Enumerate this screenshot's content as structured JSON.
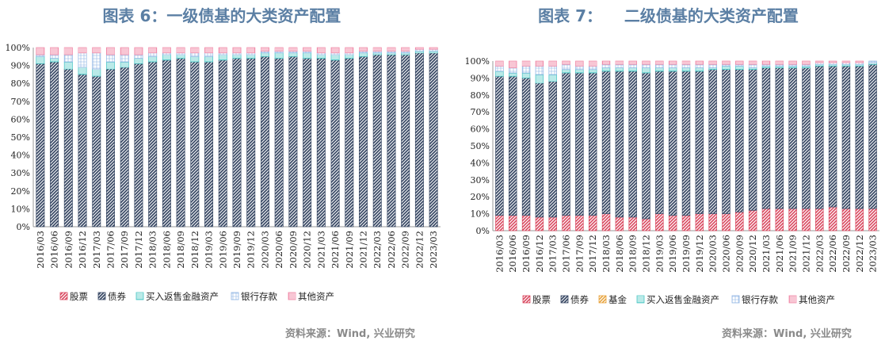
{
  "source_text": "资料来源：Wind, 兴业研究",
  "legend_labels": {
    "stock": "股票",
    "bond": "债券",
    "fund": "基金",
    "repo": "买入返售金融资产",
    "deposit": "银行存款",
    "other": "其他资产"
  },
  "colors": {
    "stock": "#d9485f",
    "bond": "#3a4a66",
    "fund": "#e8a33d",
    "repo": "#47c6c4",
    "deposit": "#8eb4e3",
    "other": "#f08aa8"
  },
  "chart_data": [
    {
      "type": "bar",
      "stacked": true,
      "title": "图表 6：一级债基的大类资产配置",
      "categories": [
        "2016/03",
        "2016/06",
        "2016/09",
        "2016/12",
        "2017/03",
        "2017/06",
        "2017/09",
        "2017/12",
        "2018/03",
        "2018/06",
        "2018/09",
        "2018/12",
        "2019/03",
        "2019/06",
        "2019/09",
        "2019/12",
        "2020/03",
        "2020/06",
        "2020/09",
        "2020/12",
        "2021/03",
        "2021/06",
        "2021/09",
        "2021/12",
        "2022/03",
        "2022/06",
        "2022/09",
        "2022/12",
        "2023/03"
      ],
      "ylim": [
        0,
        100
      ],
      "yticks": [
        "0%",
        "10%",
        "20%",
        "30%",
        "40%",
        "50%",
        "60%",
        "70%",
        "80%",
        "90%",
        "100%"
      ],
      "grid": false,
      "legend_position": "bottom",
      "series": [
        {
          "key": "stock",
          "name": "股票",
          "values": [
            0,
            0,
            0,
            0,
            0,
            0,
            0,
            0,
            0,
            0,
            0,
            0,
            0,
            0,
            0,
            0,
            0,
            0,
            0,
            0,
            0,
            0,
            0,
            0,
            0,
            0,
            0,
            0,
            0
          ]
        },
        {
          "key": "bond",
          "name": "债券",
          "values": [
            91,
            92,
            88,
            85,
            84,
            88,
            89,
            91,
            92,
            93,
            94,
            92,
            92,
            93,
            94,
            94,
            95,
            94,
            95,
            94,
            94,
            93,
            94,
            95,
            96,
            96,
            96,
            97,
            97
          ]
        },
        {
          "key": "repo",
          "name": "买入返售金融资产",
          "values": [
            4,
            2,
            4,
            4,
            4,
            4,
            3,
            3,
            3,
            3,
            2,
            3,
            3,
            3,
            2,
            2,
            2,
            3,
            2,
            3,
            2,
            3,
            2,
            2,
            1,
            1,
            1,
            1,
            1
          ]
        },
        {
          "key": "deposit",
          "name": "银行存款",
          "values": [
            1,
            2,
            4,
            8,
            9,
            4,
            4,
            2,
            2,
            1,
            1,
            2,
            2,
            1,
            1,
            1,
            1,
            1,
            1,
            1,
            1,
            1,
            1,
            1,
            1,
            1,
            1,
            1,
            1
          ]
        },
        {
          "key": "other",
          "name": "其他资产",
          "values": [
            4,
            4,
            4,
            3,
            3,
            4,
            4,
            4,
            3,
            3,
            3,
            3,
            3,
            3,
            3,
            3,
            2,
            2,
            2,
            2,
            3,
            3,
            3,
            2,
            2,
            2,
            2,
            1,
            1
          ]
        }
      ]
    },
    {
      "type": "bar",
      "stacked": true,
      "title": "图表 7：    二级债基的大类资产配置",
      "categories": [
        "2016/03",
        "2016/06",
        "2016/09",
        "2016/12",
        "2017/03",
        "2017/06",
        "2017/09",
        "2017/12",
        "2018/03",
        "2018/06",
        "2018/09",
        "2018/12",
        "2019/03",
        "2019/06",
        "2019/09",
        "2019/12",
        "2020/03",
        "2020/06",
        "2020/09",
        "2020/12",
        "2021/03",
        "2021/06",
        "2021/09",
        "2021/12",
        "2022/03",
        "2022/06",
        "2022/09",
        "2022/12",
        "2023/03"
      ],
      "ylim": [
        0,
        100
      ],
      "yticks": [
        "0%",
        "10%",
        "20%",
        "30%",
        "40%",
        "50%",
        "60%",
        "70%",
        "80%",
        "90%",
        "100%"
      ],
      "grid": false,
      "legend_position": "bottom",
      "series": [
        {
          "key": "stock",
          "name": "股票",
          "values": [
            9,
            9,
            9,
            8,
            8,
            9,
            9,
            9,
            10,
            8,
            8,
            7,
            10,
            9,
            9,
            10,
            10,
            10,
            11,
            12,
            13,
            13,
            13,
            13,
            13,
            14,
            13,
            13,
            13
          ]
        },
        {
          "key": "bond",
          "name": "债券",
          "values": [
            82,
            82,
            81,
            79,
            80,
            84,
            84,
            84,
            84,
            86,
            86,
            86,
            84,
            85,
            85,
            84,
            85,
            85,
            84,
            83,
            83,
            83,
            83,
            83,
            84,
            83,
            84,
            84,
            85
          ]
        },
        {
          "key": "fund",
          "name": "基金",
          "values": [
            0,
            0,
            0,
            0,
            0,
            0,
            0,
            0,
            0,
            0,
            0,
            0,
            0,
            0,
            0,
            0,
            0,
            0,
            0,
            0,
            0,
            0,
            0,
            0,
            0,
            0,
            0,
            0,
            0
          ]
        },
        {
          "key": "repo",
          "name": "买入返售金融资产",
          "values": [
            3,
            2,
            3,
            5,
            4,
            2,
            2,
            2,
            2,
            2,
            2,
            3,
            2,
            2,
            2,
            2,
            1,
            2,
            2,
            1,
            1,
            1,
            1,
            1,
            1,
            1,
            1,
            1,
            1
          ]
        },
        {
          "key": "deposit",
          "name": "银行存款",
          "values": [
            3,
            3,
            4,
            5,
            5,
            3,
            2,
            2,
            2,
            2,
            2,
            2,
            2,
            2,
            2,
            2,
            2,
            1,
            1,
            2,
            1,
            1,
            1,
            1,
            1,
            1,
            1,
            1,
            1
          ]
        },
        {
          "key": "other",
          "name": "其他资产",
          "values": [
            3,
            4,
            3,
            3,
            3,
            2,
            3,
            3,
            2,
            2,
            2,
            2,
            2,
            2,
            2,
            2,
            2,
            2,
            2,
            2,
            2,
            2,
            2,
            2,
            1,
            1,
            1,
            1,
            0
          ]
        }
      ]
    }
  ]
}
